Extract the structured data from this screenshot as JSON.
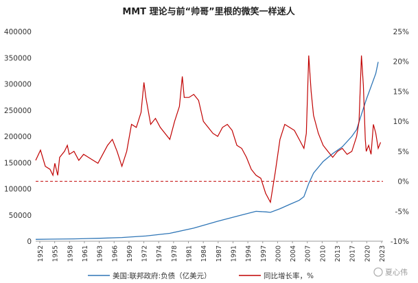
{
  "chart_data": {
    "type": "line",
    "title": "MMT 理论与前“帅哥”里根的微笑一样迷人",
    "x_tick_labels": [
      "1952",
      "1955",
      "1958",
      "1961",
      "1963",
      "1966",
      "1969",
      "1972",
      "1974",
      "1978",
      "1981",
      "1984",
      "1987",
      "1991",
      "1994",
      "1997",
      "2000",
      "2004",
      "2007",
      "2010",
      "2013",
      "2017",
      "2020",
      "2023"
    ],
    "y_left": {
      "ylim": [
        0,
        400000
      ],
      "ticks": [
        "0",
        "50000",
        "100000",
        "150000",
        "200000",
        "250000",
        "300000",
        "350000",
        "400000"
      ]
    },
    "y_right": {
      "ylim": [
        -10,
        25
      ],
      "ticks": [
        "-10%",
        "-5%",
        "0%",
        "5%",
        "10%",
        "15%",
        "20%",
        "25%"
      ]
    },
    "reference_line": {
      "value": 0,
      "axis": "right",
      "style": "dashed",
      "color": "#c00000"
    },
    "legend_placement": "bottom",
    "grid": false,
    "series": [
      {
        "name": "美国:联邦政府:负债（亿美元）",
        "axis": "left",
        "color": "#2e75b6",
        "x": [
          1952,
          1955,
          1960,
          1965,
          1970,
          1975,
          1980,
          1985,
          1990,
          1995,
          1998,
          2000,
          2001,
          2003,
          2005,
          2007,
          2008,
          2009,
          2010,
          2012,
          2014,
          2016,
          2018,
          2019,
          2020,
          2021,
          2022,
          2023,
          2023.5
        ],
        "y": [
          3500,
          3900,
          4500,
          5500,
          7000,
          10000,
          15000,
          25000,
          38000,
          50000,
          57000,
          56000,
          55000,
          62000,
          70000,
          78000,
          85000,
          110000,
          130000,
          152000,
          167000,
          180000,
          200000,
          213000,
          242000,
          270000,
          295000,
          320000,
          342000
        ]
      },
      {
        "name": "同比增长率，%",
        "axis": "right",
        "color": "#c00000",
        "x": [
          1952,
          1953,
          1954,
          1955,
          1955.6,
          1956,
          1956.6,
          1957,
          1958,
          1958.6,
          1959,
          1960,
          1961,
          1962,
          1963,
          1964,
          1965,
          1966,
          1967,
          1968,
          1969,
          1970,
          1971,
          1972,
          1973,
          1974,
          1974.6,
          1975,
          1976,
          1977,
          1978,
          1979,
          1980,
          1981,
          1982,
          1982.6,
          1983,
          1984,
          1985,
          1986,
          1987,
          1988,
          1989,
          1990,
          1991,
          1992,
          1993,
          1994,
          1995,
          1996,
          1997,
          1998,
          1999,
          2000,
          2001,
          2002,
          2003,
          2004,
          2005,
          2006,
          2007,
          2008,
          2008.5,
          2009,
          2009.5,
          2010,
          2011,
          2012,
          2013,
          2014,
          2015,
          2016,
          2017,
          2018,
          2019,
          2019.5,
          2020,
          2020.4,
          2020.8,
          2021,
          2021.5,
          2022,
          2022.5,
          2023,
          2023.5,
          2024
        ],
        "y": [
          3.5,
          5.2,
          2.5,
          2,
          1,
          3,
          1,
          4,
          5,
          6,
          4.5,
          5,
          3.5,
          4.5,
          4,
          3.5,
          3,
          4.5,
          6,
          7,
          5,
          2.5,
          5,
          9.5,
          9,
          11.5,
          16.5,
          14,
          9.5,
          10.5,
          9,
          8,
          7,
          10,
          12.5,
          17.5,
          14,
          14,
          14.5,
          13.5,
          10,
          9,
          8,
          7.5,
          9,
          9.5,
          8.5,
          6,
          5.5,
          4,
          2,
          1,
          0.5,
          -2,
          -3.5,
          1.5,
          7,
          9.5,
          9,
          8.5,
          7,
          5.5,
          8,
          21,
          15,
          11,
          8,
          6,
          5,
          4,
          5,
          5.5,
          4.5,
          5,
          7.5,
          10,
          21,
          16,
          7,
          5,
          6,
          4.5,
          9.5,
          8,
          5.5,
          6.5
        ]
      }
    ]
  },
  "legend": {
    "series1_label": "美国:联邦政府:负债（亿美元）",
    "series2_label": "同比增长率，%"
  },
  "watermark": "夏心伟",
  "colors": {
    "debt": "#2e75b6",
    "growth": "#c00000",
    "axis": "#999999"
  }
}
